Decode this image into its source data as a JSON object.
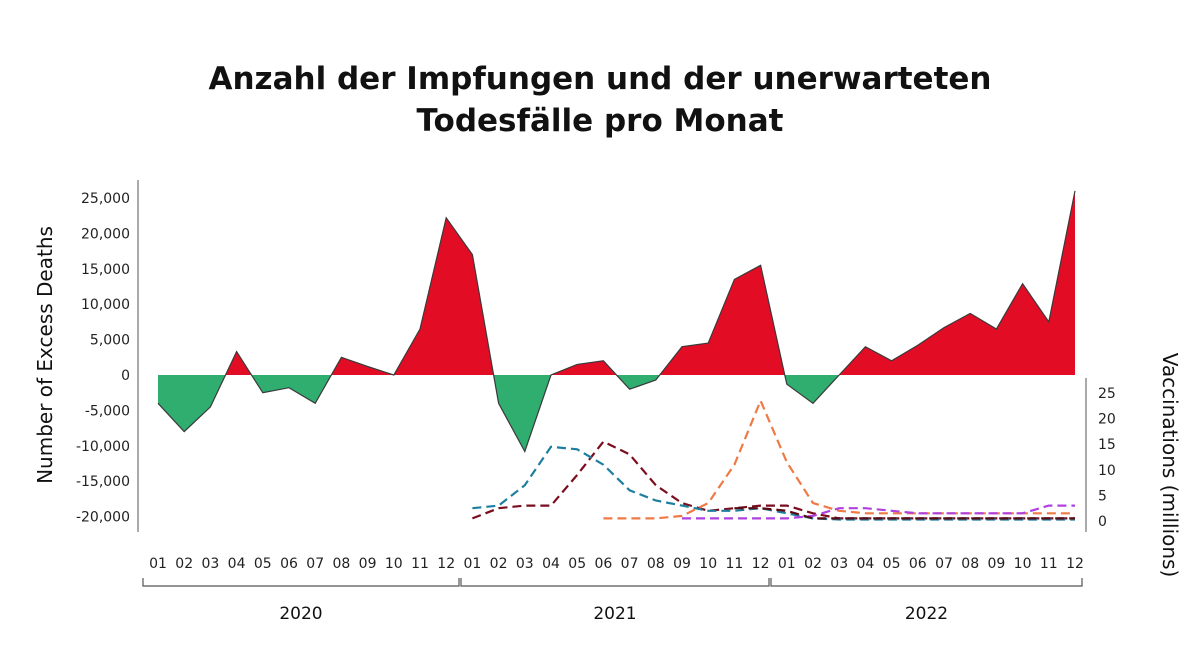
{
  "title_lines": [
    "Anzahl der Impfungen und der unerwarteten",
    "Todesfälle pro Monat"
  ],
  "colors": {
    "positive_fill": "#e20d25",
    "negative_fill": "#2fae70",
    "outline": "#3a3a3a",
    "vacc_navy": "#7a0d1e",
    "vacc_teal": "#1e7ea0",
    "vacc_orange": "#ef7a45",
    "vacc_purple": "#b040e0",
    "vacc_darkred": "#5a0c14"
  },
  "chart_data": {
    "type": "area",
    "title": "Anzahl der Impfungen und der unerwarteten Todesfälle pro Monat",
    "ylabel": "Number of Excess Deaths",
    "y2label": "Vaccinations (millions)",
    "ylim": [
      -22000,
      27000
    ],
    "y2lim": [
      0,
      25
    ],
    "yticks": [
      -20000,
      -15000,
      -10000,
      -5000,
      0,
      5000,
      10000,
      15000,
      20000,
      25000
    ],
    "ytick_labels": [
      "-20,000",
      "-15,000",
      "-10,000",
      "-5,000",
      "0",
      "5,000",
      "10,000",
      "15,000",
      "20,000",
      "25,000"
    ],
    "y2ticks": [
      0,
      5,
      10,
      15,
      20,
      25
    ],
    "y2tick_labels": [
      "0",
      "5",
      "10",
      "15",
      "20",
      "25"
    ],
    "month_labels": [
      "01",
      "02",
      "03",
      "04",
      "05",
      "06",
      "07",
      "08",
      "09",
      "10",
      "11",
      "12"
    ],
    "years": [
      "2020",
      "2021",
      "2022"
    ],
    "legend": "none",
    "grid": false,
    "excess_deaths": [
      -4000,
      -8000,
      -4500,
      3300,
      -2500,
      -1800,
      -4000,
      2500,
      1200,
      0,
      6500,
      22200,
      17000,
      -4000,
      -10800,
      0,
      1500,
      2000,
      -2000,
      -700,
      4000,
      4500,
      13500,
      15500,
      -1300,
      -4000,
      0,
      4000,
      2000,
      4200,
      6700,
      8700,
      6500,
      12900,
      7500,
      26000
    ],
    "series": [
      {
        "values": [
          null,
          null,
          null,
          null,
          null,
          null,
          null,
          null,
          null,
          null,
          null,
          null,
          0.5,
          2.5,
          3,
          3,
          9,
          15.5,
          13,
          7,
          3.5,
          2,
          2.5,
          3,
          3,
          1.5,
          0.5,
          0.5,
          0.5,
          0.5,
          0.5,
          0.5,
          0.5,
          0.5,
          0.5,
          0.5
        ]
      },
      {
        "values": [
          null,
          null,
          null,
          null,
          null,
          null,
          null,
          null,
          null,
          null,
          null,
          null,
          2.5,
          3,
          7,
          14.5,
          14,
          11,
          6,
          4,
          3,
          2,
          2,
          2.5,
          1.5,
          0.5,
          0.3,
          0.3,
          0.3,
          0.3,
          0.3,
          0.3,
          0.3,
          0.3,
          0.3,
          0.3
        ]
      },
      {
        "values": [
          null,
          null,
          null,
          null,
          null,
          null,
          null,
          null,
          null,
          null,
          null,
          null,
          null,
          null,
          null,
          null,
          null,
          0.5,
          0.5,
          0.5,
          1,
          3.5,
          11,
          23.5,
          11.5,
          3.5,
          2,
          1.5,
          1.5,
          1.5,
          1.5,
          1.5,
          1.5,
          1.5,
          1.5,
          1.5
        ]
      },
      {
        "values": [
          null,
          null,
          null,
          null,
          null,
          null,
          null,
          null,
          null,
          null,
          null,
          null,
          null,
          null,
          null,
          null,
          null,
          null,
          null,
          null,
          0.5,
          0.5,
          0.5,
          0.5,
          0.5,
          1,
          2.5,
          2.5,
          2,
          1.5,
          1.5,
          1.5,
          1.5,
          1.5,
          3,
          3
        ]
      },
      {
        "values": [
          null,
          null,
          null,
          null,
          null,
          null,
          null,
          null,
          null,
          null,
          null,
          null,
          null,
          null,
          null,
          null,
          null,
          null,
          null,
          null,
          null,
          null,
          2.5,
          2.5,
          2,
          0.5,
          0.5,
          0.5,
          0.5,
          0.5,
          0.5,
          0.5,
          0.5,
          0.5,
          0.5,
          0.5
        ]
      }
    ]
  }
}
